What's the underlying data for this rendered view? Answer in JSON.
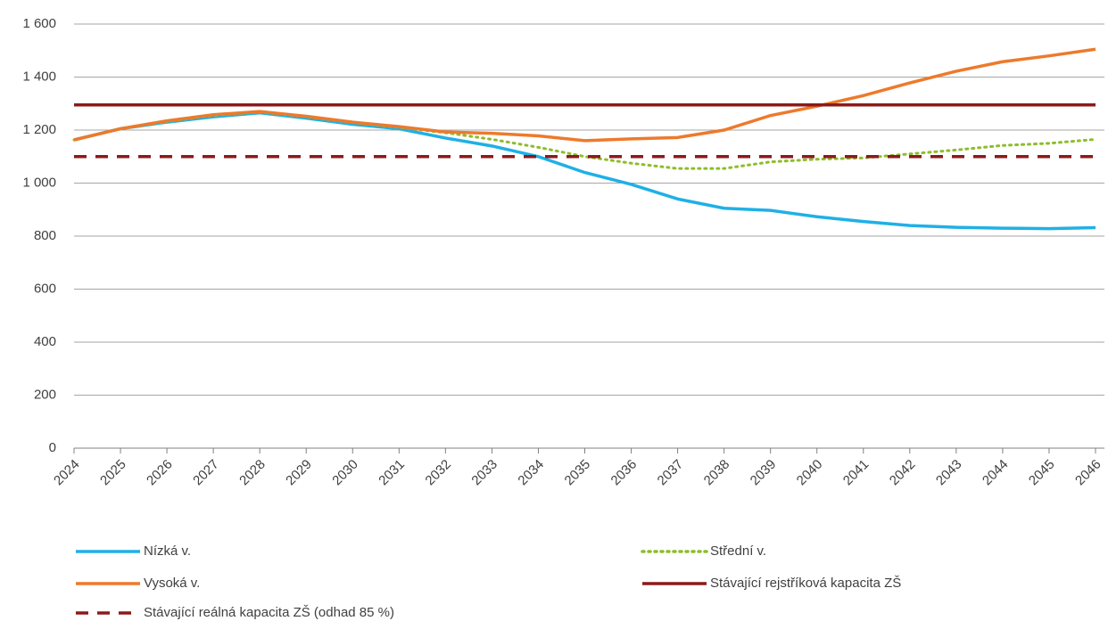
{
  "chart_data": {
    "type": "line",
    "categories": [
      "2024",
      "2025",
      "2026",
      "2027",
      "2028",
      "2029",
      "2030",
      "2031",
      "2032",
      "2033",
      "2034",
      "2035",
      "2036",
      "2037",
      "2038",
      "2039",
      "2040",
      "2041",
      "2042",
      "2043",
      "2044",
      "2045",
      "2046"
    ],
    "series": [
      {
        "name": "Nízká v.",
        "color": "#1fb0e6",
        "dash": "solid",
        "values": [
          1163,
          1205,
          1230,
          1250,
          1265,
          1245,
          1222,
          1205,
          1170,
          1140,
          1100,
          1040,
          995,
          940,
          905,
          897,
          873,
          855,
          840,
          833,
          830,
          828,
          832
        ]
      },
      {
        "name": "Střední v.",
        "color": "#8dbd2a",
        "dash": "dotted",
        "values": [
          1163,
          1205,
          1232,
          1255,
          1268,
          1250,
          1228,
          1210,
          1190,
          1165,
          1135,
          1100,
          1075,
          1055,
          1055,
          1080,
          1090,
          1095,
          1110,
          1125,
          1142,
          1150,
          1165
        ]
      },
      {
        "name": "Vysoká v.",
        "color": "#ed7a2b",
        "dash": "solid",
        "values": [
          1163,
          1205,
          1235,
          1258,
          1270,
          1252,
          1230,
          1213,
          1193,
          1188,
          1178,
          1160,
          1167,
          1172,
          1200,
          1255,
          1290,
          1330,
          1378,
          1422,
          1458,
          1480,
          1505
        ]
      },
      {
        "name": "Stávající rejstříková kapacita ZŠ",
        "color": "#8b1a1a",
        "dash": "solid",
        "values": [
          1295,
          1295,
          1295,
          1295,
          1295,
          1295,
          1295,
          1295,
          1295,
          1295,
          1295,
          1295,
          1295,
          1295,
          1295,
          1295,
          1295,
          1295,
          1295,
          1295,
          1295,
          1295,
          1295
        ]
      },
      {
        "name": "Stávající reálná kapacita ZŠ (odhad 85 %)",
        "color": "#8b1a1a",
        "dash": "dashed",
        "values": [
          1100,
          1100,
          1100,
          1100,
          1100,
          1100,
          1100,
          1100,
          1100,
          1100,
          1100,
          1100,
          1100,
          1100,
          1100,
          1100,
          1100,
          1100,
          1100,
          1100,
          1100,
          1100,
          1100
        ]
      }
    ],
    "ylim": [
      0,
      1600
    ],
    "yticks": [
      0,
      200,
      400,
      600,
      800,
      {
        "value": 1000,
        "label": "1 000"
      },
      {
        "value": 1200,
        "label": "1 200"
      },
      {
        "value": 1400,
        "label": "1 400"
      },
      {
        "value": 1600,
        "label": "1 600"
      }
    ],
    "grid": true,
    "legend": "bottom"
  }
}
